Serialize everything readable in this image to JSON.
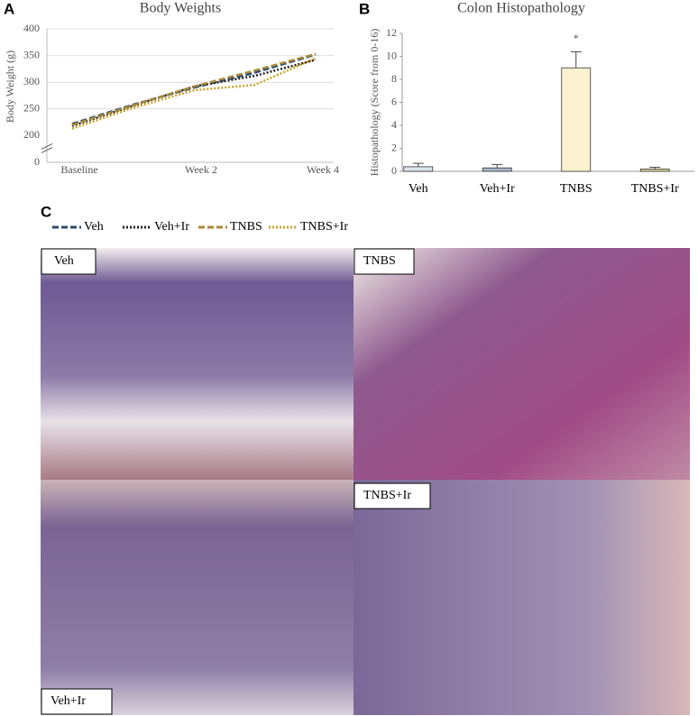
{
  "panels": [
    "A",
    "B",
    "C"
  ],
  "chart_data": [
    {
      "type": "line",
      "title": "Body Weights",
      "y_label": "Body Weight (g)",
      "categories": [
        "Baseline",
        null,
        "Week 2",
        null,
        "Week 4"
      ],
      "ylim": [
        0,
        400
      ],
      "yticks": [
        0,
        200,
        250,
        300,
        350,
        400
      ],
      "y_break": [
        0,
        200
      ],
      "grid": true,
      "series": [
        {
          "name": "Veh",
          "color": "#2e4a6e",
          "dash": "dashed",
          "values": [
            222,
            258,
            290,
            318,
            352
          ]
        },
        {
          "name": "Veh+Ir",
          "color": "#222222",
          "dash": "dotted",
          "values": [
            218,
            256,
            292,
            312,
            342
          ]
        },
        {
          "name": "TNBS",
          "color": "#a88a3a",
          "dash": "dashed",
          "values": [
            220,
            257,
            292,
            322,
            353
          ]
        },
        {
          "name": "TNBS+Ir",
          "color": "#c9a227",
          "dash": "dotted",
          "values": [
            213,
            252,
            285,
            295,
            345
          ]
        }
      ]
    },
    {
      "type": "bar",
      "title": "Colon Histopathology",
      "y_label": "Histopathology (Score from 0-16)",
      "categories": [
        "Veh",
        "Veh+Ir",
        "TNBS",
        "TNBS+Ir"
      ],
      "values": [
        0.4,
        0.3,
        9.0,
        0.2
      ],
      "errors": [
        0.3,
        0.3,
        1.4,
        0.15
      ],
      "colors": [
        "#dce4ee",
        "#a9b8c9",
        "#fbf2cf",
        "#e6d59a"
      ],
      "ylim": [
        0,
        12
      ],
      "yticks": [
        0,
        2,
        4,
        6,
        8,
        10,
        12
      ],
      "annotation": {
        "text": "*",
        "category": 2
      }
    }
  ],
  "micrographs": [
    "Veh",
    "TNBS",
    "Veh+Ir",
    "TNBS+Ir"
  ]
}
